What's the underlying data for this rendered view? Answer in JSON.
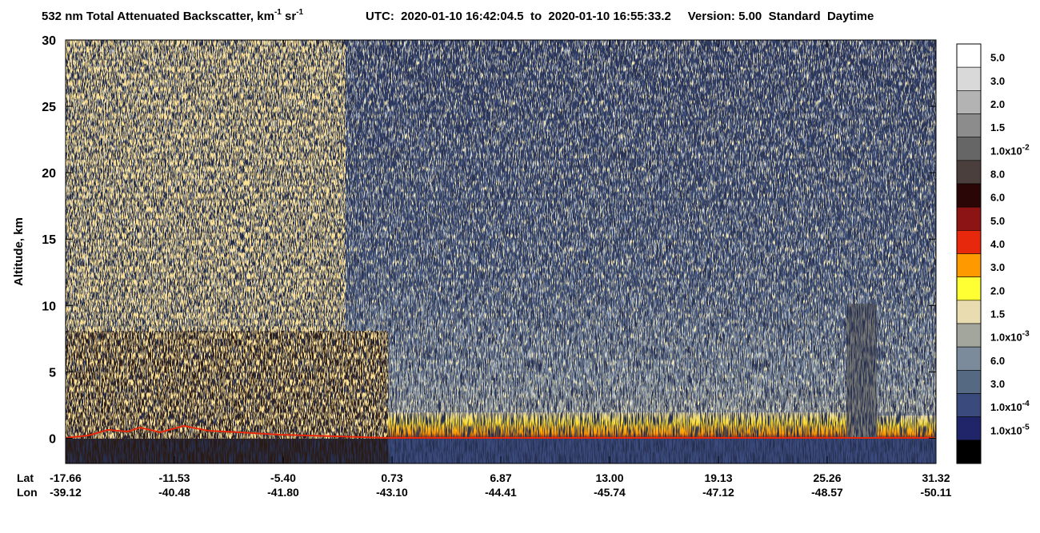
{
  "chart_data": {
    "type": "curtain",
    "title_parts": [
      {
        "text": "532 nm Total Attenuated Backscatter, km"
      },
      {
        "sup": "-1"
      },
      {
        "text": " sr"
      },
      {
        "sup": "-1"
      }
    ],
    "subtitle": "UTC:  2020-01-10 16:42:04.5  to  2020-01-10 16:55:33.2     Version: 5.00  Standard  Daytime",
    "ylabel": "Altitude, km",
    "ylim": [
      -1.9,
      30
    ],
    "yticks": [
      0,
      5,
      10,
      15,
      20,
      25,
      30
    ],
    "x_rows": [
      {
        "name": "Lat",
        "labels": [
          "-17.66",
          "-11.53",
          "-5.40",
          "0.73",
          "6.87",
          "13.00",
          "19.13",
          "25.26",
          "31.32"
        ]
      },
      {
        "name": "Lon",
        "labels": [
          "-39.12",
          "-40.48",
          "-41.80",
          "-43.10",
          "-44.41",
          "-45.74",
          "-47.12",
          "-48.57",
          "-50.11"
        ]
      }
    ],
    "colorbar": {
      "colors": [
        "#ffffff",
        "#d9d9d9",
        "#b3b3b3",
        "#8c8c8c",
        "#666666",
        "#4a3f3c",
        "#2b0606",
        "#8c1414",
        "#e8280c",
        "#ff9900",
        "#ffff33",
        "#e8dcb0",
        "#a3a69c",
        "#7b8b9b",
        "#566983",
        "#3a4a7d",
        "#1f2568",
        "#000000"
      ],
      "labels": [
        "5.0",
        "3.0",
        "2.0",
        "1.5",
        {
          "text": "1.0x10",
          "sup": "-2"
        },
        "8.0",
        "6.0",
        "5.0",
        "4.0",
        "3.0",
        "2.0",
        "1.5",
        {
          "text": "1.0x10",
          "sup": "-3"
        },
        "6.0",
        "3.0",
        {
          "text": "1.0x10",
          "sup": "-4"
        },
        {
          "text": "1.0x10",
          "sup": "-5"
        },
        null
      ]
    }
  }
}
